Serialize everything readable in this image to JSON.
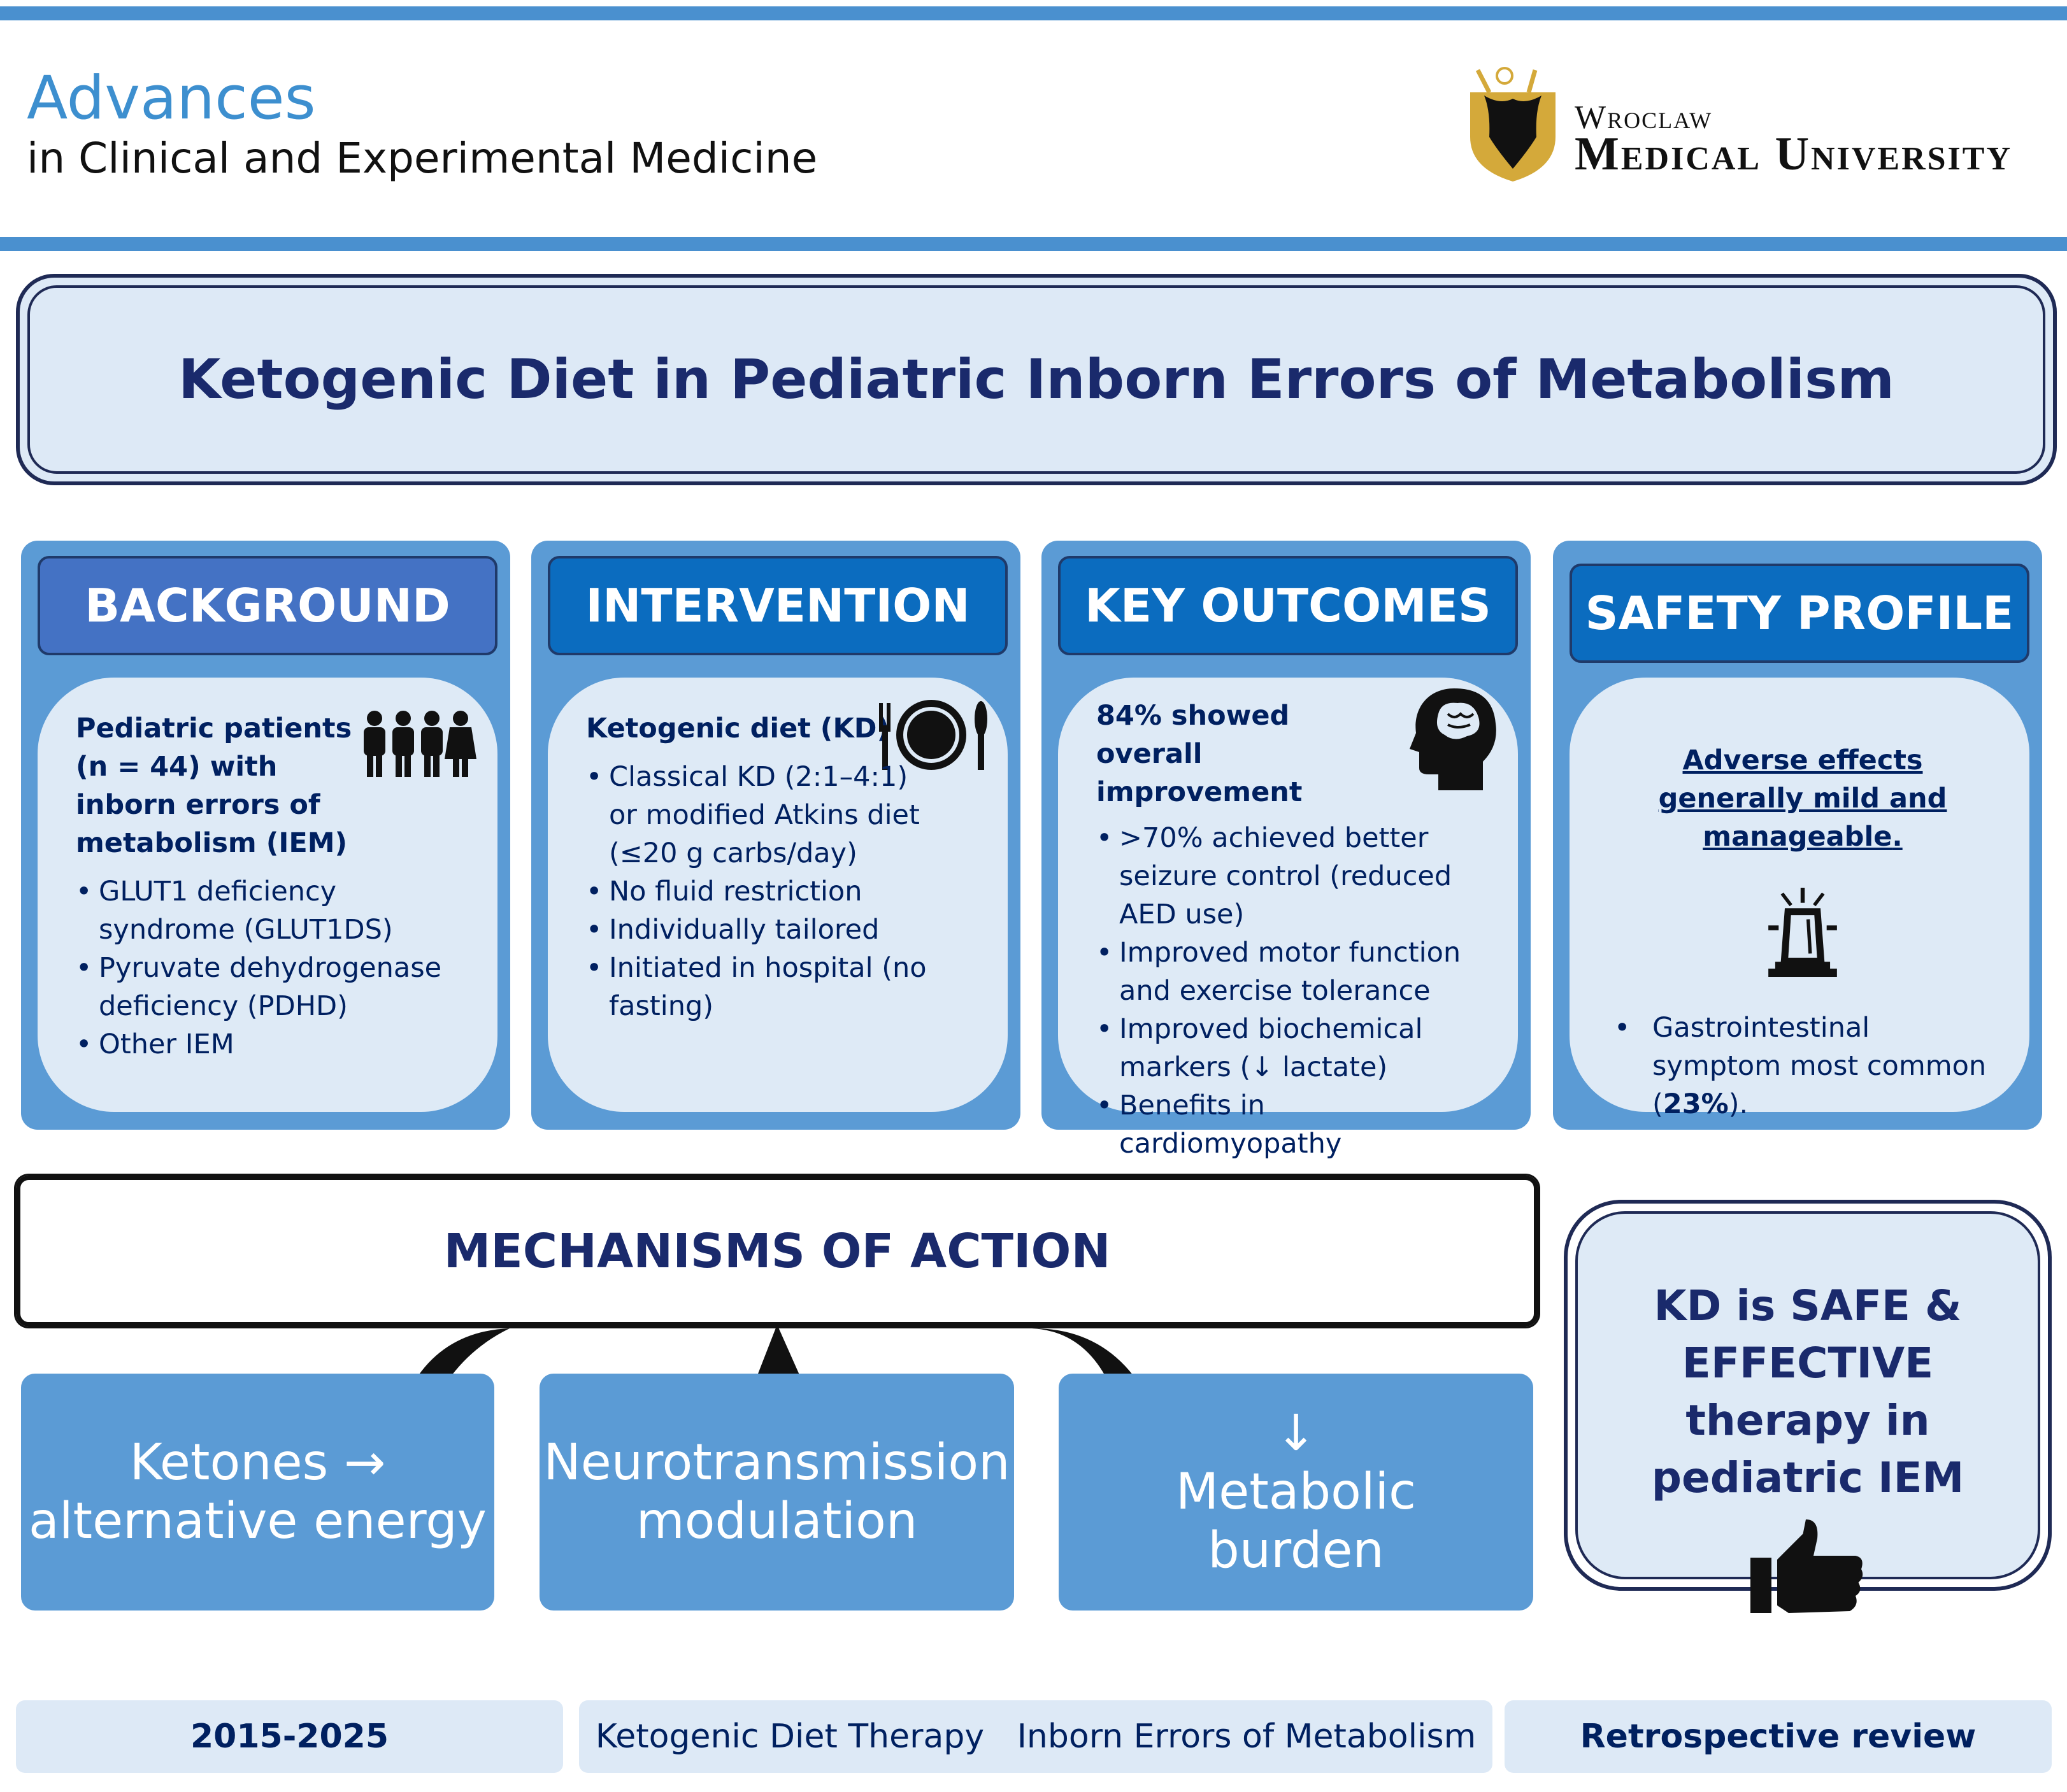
{
  "journal": {
    "name": "Advances",
    "subtitle": "in Clinical and Experimental Medicine"
  },
  "university": {
    "line1": "Wroclaw",
    "line2": "Medical University"
  },
  "title": "Ketogenic Diet in Pediatric Inborn Errors of Metabolism",
  "panels": [
    {
      "header": "BACKGROUND",
      "lead": "Pediatric patients (n = 44) with inborn errors of metabolism (IEM)",
      "items": [
        "GLUT1 deficiency syndrome (GLUT1DS)",
        "Pyruvate dehydrogenase deficiency (PDHD)",
        "Other IEM"
      ],
      "icon": "people-icon"
    },
    {
      "header": "INTERVENTION",
      "lead": "Ketogenic diet (KD)",
      "items": [
        "Classical KD (2:1–4:1) or modified Atkins diet (≤20 g carbs/day)",
        "No fluid restriction",
        "Individually tailored",
        "Initiated in hospital (no fasting)"
      ],
      "icon": "plate-cutlery-icon"
    },
    {
      "header": "KEY OUTCOMES",
      "lead": "84% showed overall improvement",
      "items": [
        ">70% achieved better seizure control (reduced AED use)",
        "Improved motor function and exercise tolerance",
        "Improved biochemical markers (↓ lactate)",
        "Benefits in cardiomyopathy"
      ],
      "icon": "brain-head-icon"
    },
    {
      "header": "SAFETY PROFILE",
      "lead_a": "Adverse effects",
      "lead_b": "generally mild and manageable",
      "lead_end": ".",
      "items_text": "Gastrointestinal symptom most common (",
      "items_bold": "23%",
      "items_end": ").",
      "icon": "siren-icon"
    }
  ],
  "mechanisms": {
    "title": "MECHANISMS OF ACTION",
    "items": [
      "Ketones → alternative energy",
      "Neurotransmission modulation",
      "↓ Metabolic burden"
    ]
  },
  "conclusion": "KD is SAFE & EFFECTIVE therapy in pediatric IEM",
  "footer": {
    "years": "2015-2025",
    "keyword1": "Ketogenic Diet Therapy",
    "keyword2": "Inborn Errors of Metabolism",
    "design": "Retrospective review"
  },
  "colors": {
    "accent": "#4a90cf",
    "panel": "#5b9bd5",
    "header": "#0b6cbf",
    "card": "#deeaf6",
    "text": "#002060"
  }
}
